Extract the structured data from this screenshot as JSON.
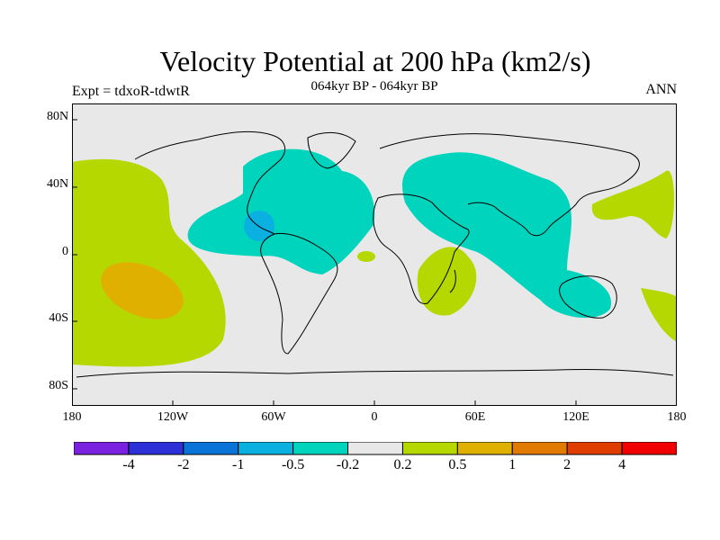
{
  "title": "Velocity Potential at 200 hPa (km2/s)",
  "subtitle": "064kyr BP - 064kyr BP",
  "left_label": "Expt = tdxoR-tdwtR",
  "right_label": "ANN",
  "lat_ticks": [
    "80N",
    "40N",
    "0",
    "40S",
    "80S"
  ],
  "lon_ticks": [
    "180",
    "120W",
    "60W",
    "0",
    "60E",
    "120E",
    "180"
  ],
  "colorbar": {
    "colors": [
      "#7b22e0",
      "#2d2fd7",
      "#0a73d8",
      "#0ab0e0",
      "#00d4bd",
      "#e8e8e8",
      "#b4d800",
      "#e0b000",
      "#e07a00",
      "#e03c00",
      "#f00000"
    ],
    "labels": [
      "-4",
      "-2",
      "-1",
      "-0.5",
      "-0.2",
      "0.2",
      "0.5",
      "1",
      "2",
      "4"
    ]
  },
  "colors": {
    "background": "#e8e8e8",
    "negative_light": "#00d4bd",
    "negative_mid": "#0ab0e0",
    "positive_light": "#b4d800",
    "positive_mid": "#e0b000"
  }
}
